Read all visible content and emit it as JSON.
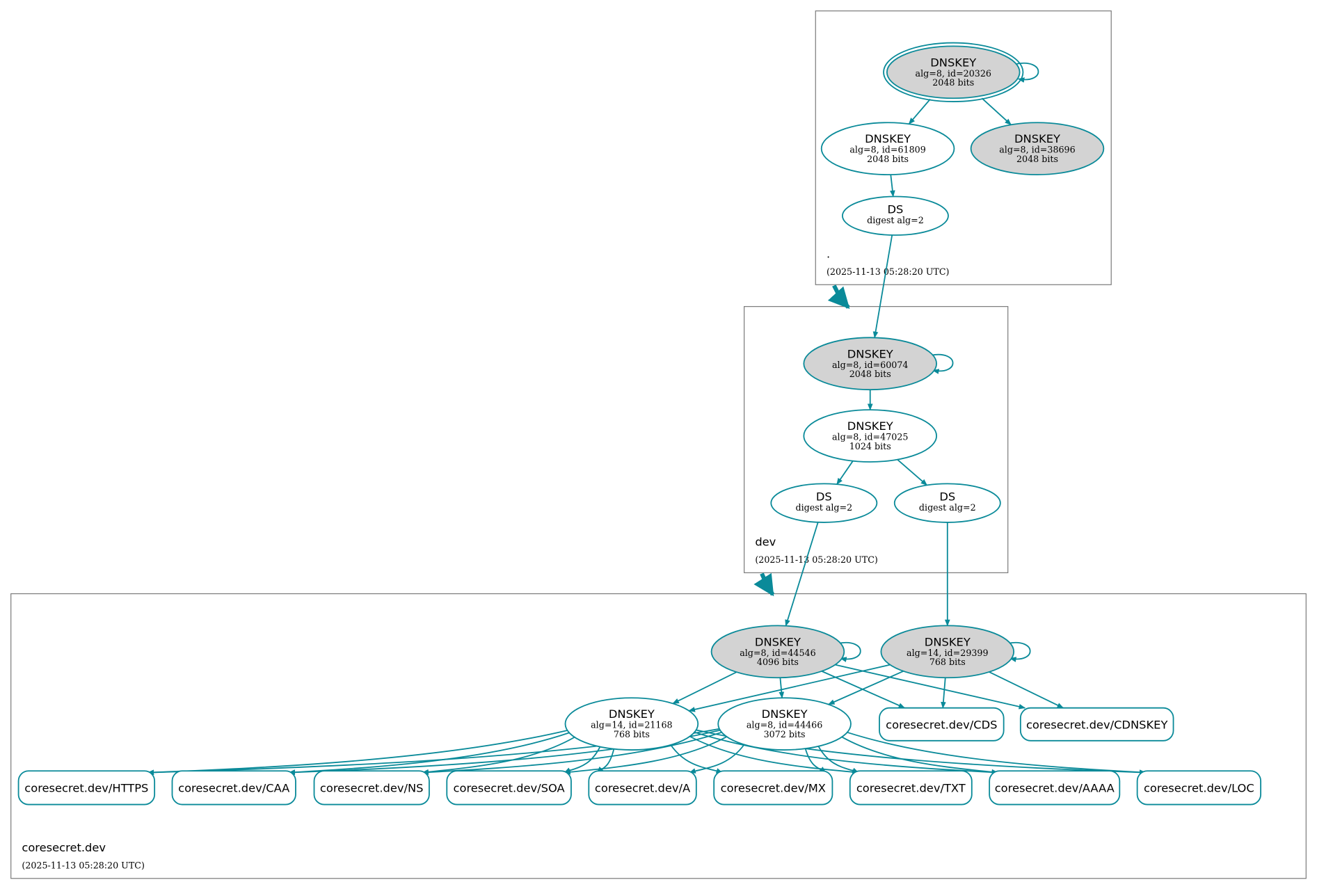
{
  "colors": {
    "edge": "#0a8a99",
    "node_stroke": "#0a8a99",
    "gray_fill": "#d3d3d3",
    "white_fill": "#ffffff",
    "cluster_stroke": "#7a7a7a"
  },
  "zones": [
    {
      "id": "root",
      "name": ".",
      "timestamp": "(2025-11-13 05:28:20 UTC)"
    },
    {
      "id": "dev",
      "name": "dev",
      "timestamp": "(2025-11-13 05:28:20 UTC)"
    },
    {
      "id": "coresecret",
      "name": "coresecret.dev",
      "timestamp": "(2025-11-13 05:28:20 UTC)"
    }
  ],
  "nodes": [
    {
      "id": "k20326",
      "zone": "root",
      "title": "DNSKEY",
      "line1": "alg=8, id=20326",
      "line2": "2048 bits",
      "fill": "gray",
      "double": true
    },
    {
      "id": "k61809",
      "zone": "root",
      "title": "DNSKEY",
      "line1": "alg=8, id=61809",
      "line2": "2048 bits",
      "fill": "white"
    },
    {
      "id": "k38696",
      "zone": "root",
      "title": "DNSKEY",
      "line1": "alg=8, id=38696",
      "line2": "2048 bits",
      "fill": "gray"
    },
    {
      "id": "ds_root",
      "zone": "root",
      "title": "DS",
      "line1": "digest alg=2",
      "fill": "white"
    },
    {
      "id": "k60074",
      "zone": "dev",
      "title": "DNSKEY",
      "line1": "alg=8, id=60074",
      "line2": "2048 bits",
      "fill": "gray"
    },
    {
      "id": "k47025",
      "zone": "dev",
      "title": "DNSKEY",
      "line1": "alg=8, id=47025",
      "line2": "1024 bits",
      "fill": "white"
    },
    {
      "id": "ds_dev_a",
      "zone": "dev",
      "title": "DS",
      "line1": "digest alg=2",
      "fill": "white"
    },
    {
      "id": "ds_dev_b",
      "zone": "dev",
      "title": "DS",
      "line1": "digest alg=2",
      "fill": "white"
    },
    {
      "id": "k44546",
      "zone": "coresecret",
      "title": "DNSKEY",
      "line1": "alg=8, id=44546",
      "line2": "4096 bits",
      "fill": "gray"
    },
    {
      "id": "k29399",
      "zone": "coresecret",
      "title": "DNSKEY",
      "line1": "alg=14, id=29399",
      "line2": "768 bits",
      "fill": "gray"
    },
    {
      "id": "k21168",
      "zone": "coresecret",
      "title": "DNSKEY",
      "line1": "alg=14, id=21168",
      "line2": "768 bits",
      "fill": "white"
    },
    {
      "id": "k44466",
      "zone": "coresecret",
      "title": "DNSKEY",
      "line1": "alg=8, id=44466",
      "line2": "3072 bits",
      "fill": "white"
    }
  ],
  "rrsets": [
    {
      "id": "CDS",
      "label": "coresecret.dev/CDS"
    },
    {
      "id": "CDNSKEY",
      "label": "coresecret.dev/CDNSKEY"
    },
    {
      "id": "HTTPS",
      "label": "coresecret.dev/HTTPS"
    },
    {
      "id": "CAA",
      "label": "coresecret.dev/CAA"
    },
    {
      "id": "NS",
      "label": "coresecret.dev/NS"
    },
    {
      "id": "SOA",
      "label": "coresecret.dev/SOA"
    },
    {
      "id": "A",
      "label": "coresecret.dev/A"
    },
    {
      "id": "MX",
      "label": "coresecret.dev/MX"
    },
    {
      "id": "TXT",
      "label": "coresecret.dev/TXT"
    },
    {
      "id": "AAAA",
      "label": "coresecret.dev/AAAA"
    },
    {
      "id": "LOC",
      "label": "coresecret.dev/LOC"
    }
  ],
  "edges": [
    [
      "k20326",
      "k20326"
    ],
    [
      "k20326",
      "k61809"
    ],
    [
      "k20326",
      "k38696"
    ],
    [
      "k61809",
      "ds_root"
    ],
    [
      "ds_root",
      "k60074"
    ],
    [
      "k60074",
      "k60074"
    ],
    [
      "k60074",
      "k47025"
    ],
    [
      "k47025",
      "ds_dev_a"
    ],
    [
      "k47025",
      "ds_dev_b"
    ],
    [
      "ds_dev_a",
      "k44546"
    ],
    [
      "ds_dev_b",
      "k29399"
    ],
    [
      "k44546",
      "k44546"
    ],
    [
      "k29399",
      "k29399"
    ],
    [
      "k44546",
      "k21168"
    ],
    [
      "k44546",
      "k44466"
    ],
    [
      "k44546",
      "CDS"
    ],
    [
      "k44546",
      "CDNSKEY"
    ],
    [
      "k29399",
      "k21168"
    ],
    [
      "k29399",
      "k44466"
    ],
    [
      "k29399",
      "CDS"
    ],
    [
      "k29399",
      "CDNSKEY"
    ],
    [
      "k21168",
      "HTTPS"
    ],
    [
      "k21168",
      "CAA"
    ],
    [
      "k21168",
      "NS"
    ],
    [
      "k21168",
      "SOA"
    ],
    [
      "k21168",
      "A"
    ],
    [
      "k21168",
      "MX"
    ],
    [
      "k21168",
      "TXT"
    ],
    [
      "k21168",
      "AAAA"
    ],
    [
      "k21168",
      "LOC"
    ],
    [
      "k44466",
      "HTTPS"
    ],
    [
      "k44466",
      "CAA"
    ],
    [
      "k44466",
      "NS"
    ],
    [
      "k44466",
      "SOA"
    ],
    [
      "k44466",
      "A"
    ],
    [
      "k44466",
      "MX"
    ],
    [
      "k44466",
      "TXT"
    ],
    [
      "k44466",
      "AAAA"
    ],
    [
      "k44466",
      "LOC"
    ]
  ],
  "delegations": [
    [
      "root",
      "dev"
    ],
    [
      "dev",
      "coresecret"
    ]
  ]
}
